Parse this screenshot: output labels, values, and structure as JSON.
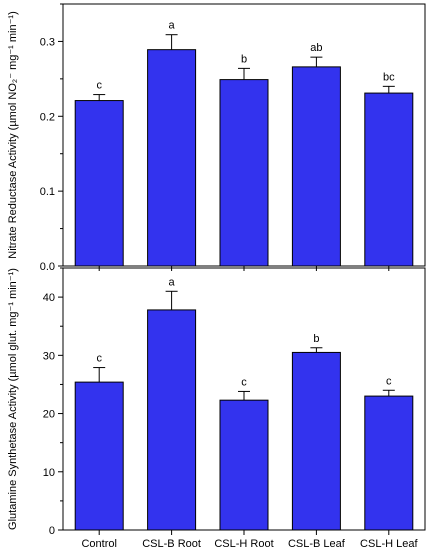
{
  "chart_data": [
    {
      "type": "bar",
      "categories": [
        "Control",
        "CSL-B Root",
        "CSL-H Root",
        "CSL-B Leaf",
        "CSL-H Leaf"
      ],
      "values": [
        0.221,
        0.289,
        0.249,
        0.266,
        0.231
      ],
      "errors": [
        0.008,
        0.02,
        0.015,
        0.013,
        0.009
      ],
      "significance": [
        "c",
        "a",
        "b",
        "ab",
        "bc"
      ],
      "ylim": [
        0,
        0.35
      ],
      "yticks": [
        "0.0",
        "0.1",
        "0.2",
        "0.3"
      ],
      "ytick_values": [
        0,
        0.1,
        0.2,
        0.3
      ],
      "ylabel": "Nitrate Reductase Activity (µmol NO₂⁻ mg⁻¹ min⁻¹)",
      "bar_color": "#3333ee",
      "grid": false,
      "legend": "none"
    },
    {
      "type": "bar",
      "categories": [
        "Control",
        "CSL-B Root",
        "CSL-H Root",
        "CSL-B Leaf",
        "CSL-H Leaf"
      ],
      "values": [
        25.4,
        37.8,
        22.3,
        30.5,
        23.0
      ],
      "errors": [
        2.5,
        3.2,
        1.5,
        0.8,
        1.0
      ],
      "significance": [
        "c",
        "a",
        "c",
        "b",
        "c"
      ],
      "ylim": [
        0,
        45
      ],
      "yticks": [
        "0",
        "10",
        "20",
        "30",
        "40"
      ],
      "ytick_values": [
        0,
        10,
        20,
        30,
        40
      ],
      "ylabel": "Glutamine Synthetase Activity (µmol glut. mg⁻¹ min⁻¹)",
      "bar_color": "#3333ee",
      "grid": false,
      "legend": "none"
    }
  ]
}
